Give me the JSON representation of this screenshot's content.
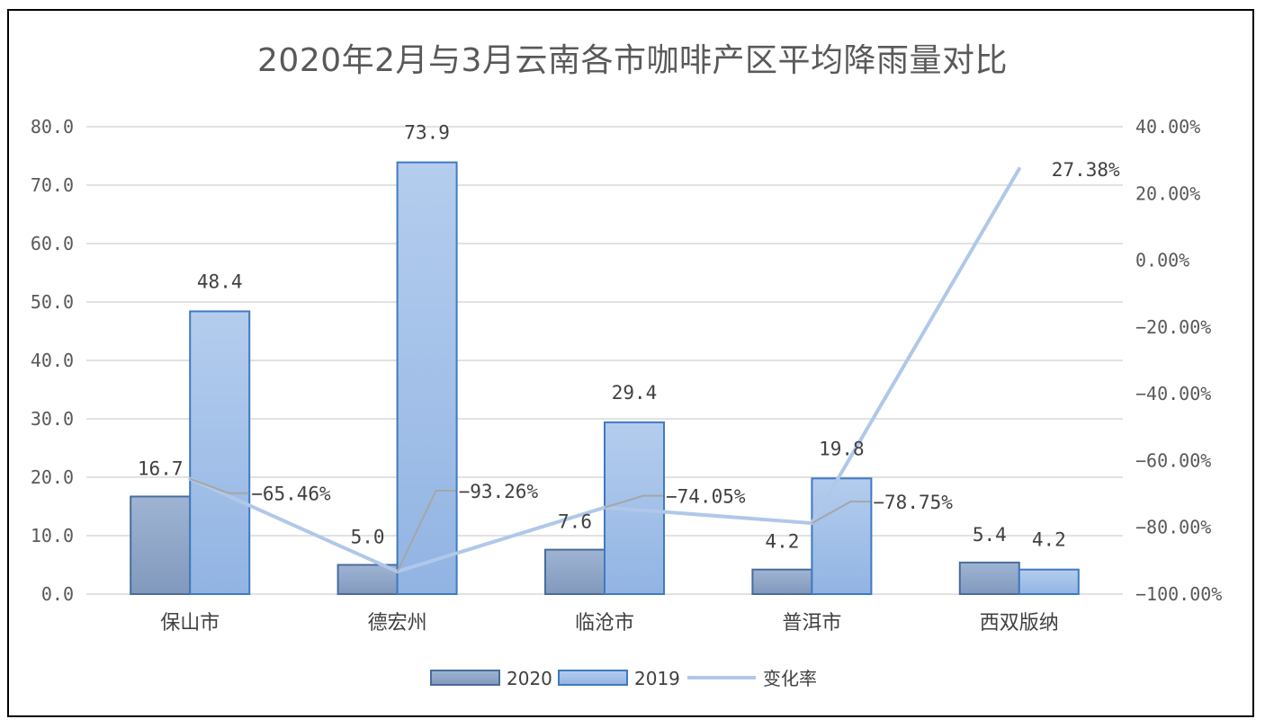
{
  "chart_data": {
    "type": "bar",
    "title": "2020年2月与3月云南各市咖啡产区平均降雨量对比",
    "categories": [
      "保山市",
      "德宏州",
      "临沧市",
      "普洱市",
      "西双版纳"
    ],
    "series": [
      {
        "name": "2020",
        "type": "bar",
        "axis": "left",
        "values": [
          16.7,
          5.0,
          7.6,
          4.2,
          5.4
        ],
        "labels": [
          "16.7",
          "5.0",
          "7.6",
          "4.2",
          "5.4"
        ],
        "color": "#8ea5c8"
      },
      {
        "name": "2019",
        "type": "bar",
        "axis": "left",
        "values": [
          48.4,
          73.9,
          29.4,
          19.8,
          4.2
        ],
        "labels": [
          "48.4",
          "73.9",
          "29.4",
          "19.8",
          "4.2"
        ],
        "color": "#a9c5e8"
      },
      {
        "name": "变化率",
        "type": "line",
        "axis": "right",
        "values": [
          -65.46,
          -93.26,
          -74.05,
          -78.75,
          27.38
        ],
        "labels": [
          "−65.46%",
          "−93.26%",
          "−74.05%",
          "−78.75%",
          "27.38%"
        ],
        "color": "#b0c8e8"
      }
    ],
    "y_left": {
      "ylim": [
        0,
        80
      ],
      "ticks": [
        "0.0",
        "10.0",
        "20.0",
        "30.0",
        "40.0",
        "50.0",
        "60.0",
        "70.0",
        "80.0"
      ]
    },
    "y_right": {
      "ylim": [
        -100,
        40
      ],
      "ticks": [
        "−100.00%",
        "−80.00%",
        "−60.00%",
        "−40.00%",
        "−20.00%",
        "0.00%",
        "20.00%",
        "40.00%"
      ]
    },
    "grid": true,
    "legend_position": "bottom"
  }
}
